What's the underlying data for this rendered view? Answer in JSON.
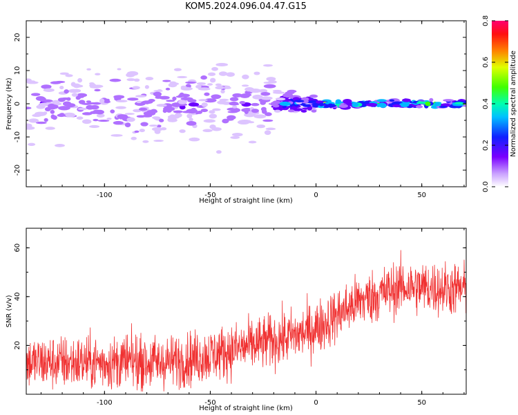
{
  "title": "KOM5.2024.096.04.47.G15",
  "chart_data": [
    {
      "type": "heatmap",
      "xlabel": "Height of straight line (km)",
      "ylabel": "Frequency (Hz)",
      "xlim": [
        -137,
        71
      ],
      "ylim": [
        -25,
        25
      ],
      "xticks": [
        -100,
        -50,
        0,
        50
      ],
      "yticks": [
        -20,
        -10,
        0,
        10,
        20
      ],
      "colorbar": {
        "label": "Normalized spectral amplitude",
        "range": [
          0,
          0.8
        ],
        "ticks": [
          "0.0",
          "0.2",
          "0.4",
          "0.6",
          "0.8"
        ]
      },
      "features": [
        {
          "x_range": [
            -137,
            -20
          ],
          "freq_center": 0,
          "freq_spread": 10,
          "amplitude": 0.15
        },
        {
          "x_range": [
            -20,
            0
          ],
          "freq_center": 0,
          "freq_spread": 3,
          "amplitude": 0.3
        },
        {
          "x_range": [
            0,
            71
          ],
          "freq_center": 0,
          "freq_spread": 1,
          "amplitude": 0.5
        }
      ],
      "grid": false
    },
    {
      "type": "line",
      "xlabel": "Height of straight line (km)",
      "ylabel": "SNR (v/v)",
      "xlim": [
        -137,
        71
      ],
      "ylim": [
        0,
        68
      ],
      "xticks": [
        -100,
        -50,
        0,
        50
      ],
      "yticks": [
        20,
        40,
        60
      ],
      "color": "#f03030",
      "trend": [
        {
          "x": -137,
          "y": 13
        },
        {
          "x": -70,
          "y": 13
        },
        {
          "x": -50,
          "y": 16
        },
        {
          "x": -30,
          "y": 20
        },
        {
          "x": -10,
          "y": 24
        },
        {
          "x": 0,
          "y": 27
        },
        {
          "x": 20,
          "y": 38
        },
        {
          "x": 40,
          "y": 44
        },
        {
          "x": 71,
          "y": 43
        }
      ],
      "noise_amplitude": 10,
      "grid": false
    }
  ]
}
